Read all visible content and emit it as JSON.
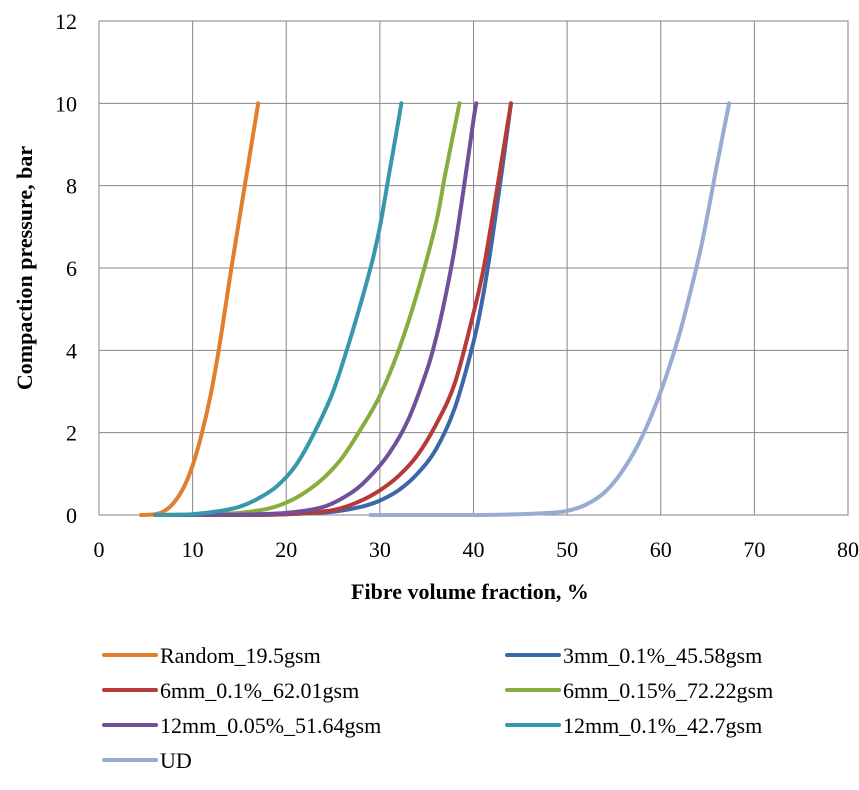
{
  "chart_data": {
    "type": "line",
    "xlabel": "Fibre volume fraction, %",
    "ylabel": "Compaction pressure, bar",
    "xlim": [
      0,
      80
    ],
    "ylim": [
      0,
      12
    ],
    "xticks": [
      "0",
      "10",
      "20",
      "30",
      "40",
      "50",
      "60",
      "70",
      "80"
    ],
    "yticks": [
      "0",
      "2",
      "4",
      "6",
      "8",
      "10",
      "12"
    ],
    "grid": true,
    "legend_position": "bottom",
    "series": [
      {
        "name": "Random_19.5gsm",
        "color": "#E07F2E",
        "x": [
          4.5,
          6,
          7,
          8,
          9,
          10,
          11,
          12,
          13,
          14,
          15,
          16,
          17
        ],
        "y": [
          0,
          0.02,
          0.1,
          0.3,
          0.65,
          1.2,
          2.0,
          3.0,
          4.3,
          5.8,
          7.2,
          8.6,
          10.0
        ]
      },
      {
        "name": "3mm_0.1%_45.58gsm",
        "color": "#3C67A8",
        "x": [
          6,
          15,
          20,
          25,
          28,
          30,
          32,
          34,
          36,
          38,
          40,
          41,
          42,
          43,
          44
        ],
        "y": [
          0,
          0,
          0.02,
          0.08,
          0.2,
          0.35,
          0.6,
          1.0,
          1.6,
          2.6,
          4.2,
          5.3,
          6.7,
          8.3,
          10.0
        ]
      },
      {
        "name": "6mm_0.1%_62.01gsm",
        "color": "#B63A36",
        "x": [
          6,
          15,
          20,
          25,
          28,
          30,
          32,
          34,
          36,
          38,
          40,
          41,
          42,
          43,
          44
        ],
        "y": [
          0,
          0,
          0.02,
          0.12,
          0.35,
          0.6,
          0.95,
          1.45,
          2.2,
          3.2,
          4.9,
          5.9,
          7.2,
          8.6,
          10.0
        ]
      },
      {
        "name": "6mm_0.15%_72.22gsm",
        "color": "#86AD3F",
        "x": [
          6,
          12,
          15,
          18,
          20,
          22,
          24,
          26,
          28,
          30,
          32,
          34,
          36,
          37,
          38.5
        ],
        "y": [
          0,
          0.02,
          0.05,
          0.15,
          0.3,
          0.55,
          0.9,
          1.4,
          2.1,
          2.9,
          4.0,
          5.4,
          7.1,
          8.3,
          10.0
        ]
      },
      {
        "name": "12mm_0.05%_51.64gsm",
        "color": "#70509A",
        "x": [
          6,
          15,
          20,
          24,
          27,
          29,
          31,
          33,
          35,
          36,
          37,
          38,
          39,
          40,
          40.3
        ],
        "y": [
          0,
          0.01,
          0.05,
          0.2,
          0.55,
          0.95,
          1.5,
          2.3,
          3.5,
          4.3,
          5.3,
          6.5,
          8.0,
          9.6,
          10.0
        ]
      },
      {
        "name": "12mm_0.1%_42.7gsm",
        "color": "#3697AD",
        "x": [
          6,
          10,
          13,
          15,
          17,
          19,
          21,
          23,
          25,
          27,
          29,
          30,
          31,
          32,
          32.3
        ],
        "y": [
          0,
          0.02,
          0.1,
          0.2,
          0.4,
          0.7,
          1.2,
          2.0,
          3.0,
          4.4,
          6.0,
          7.0,
          8.3,
          9.6,
          10.0
        ]
      },
      {
        "name": "UD",
        "color": "#97ABD3",
        "x": [
          29,
          35,
          40,
          45,
          48,
          50,
          52,
          54,
          56,
          58,
          60,
          62,
          64,
          65,
          66,
          67.3
        ],
        "y": [
          0,
          0,
          0,
          0.02,
          0.05,
          0.1,
          0.25,
          0.55,
          1.1,
          1.9,
          3.0,
          4.4,
          6.2,
          7.3,
          8.5,
          10.0
        ]
      }
    ]
  }
}
